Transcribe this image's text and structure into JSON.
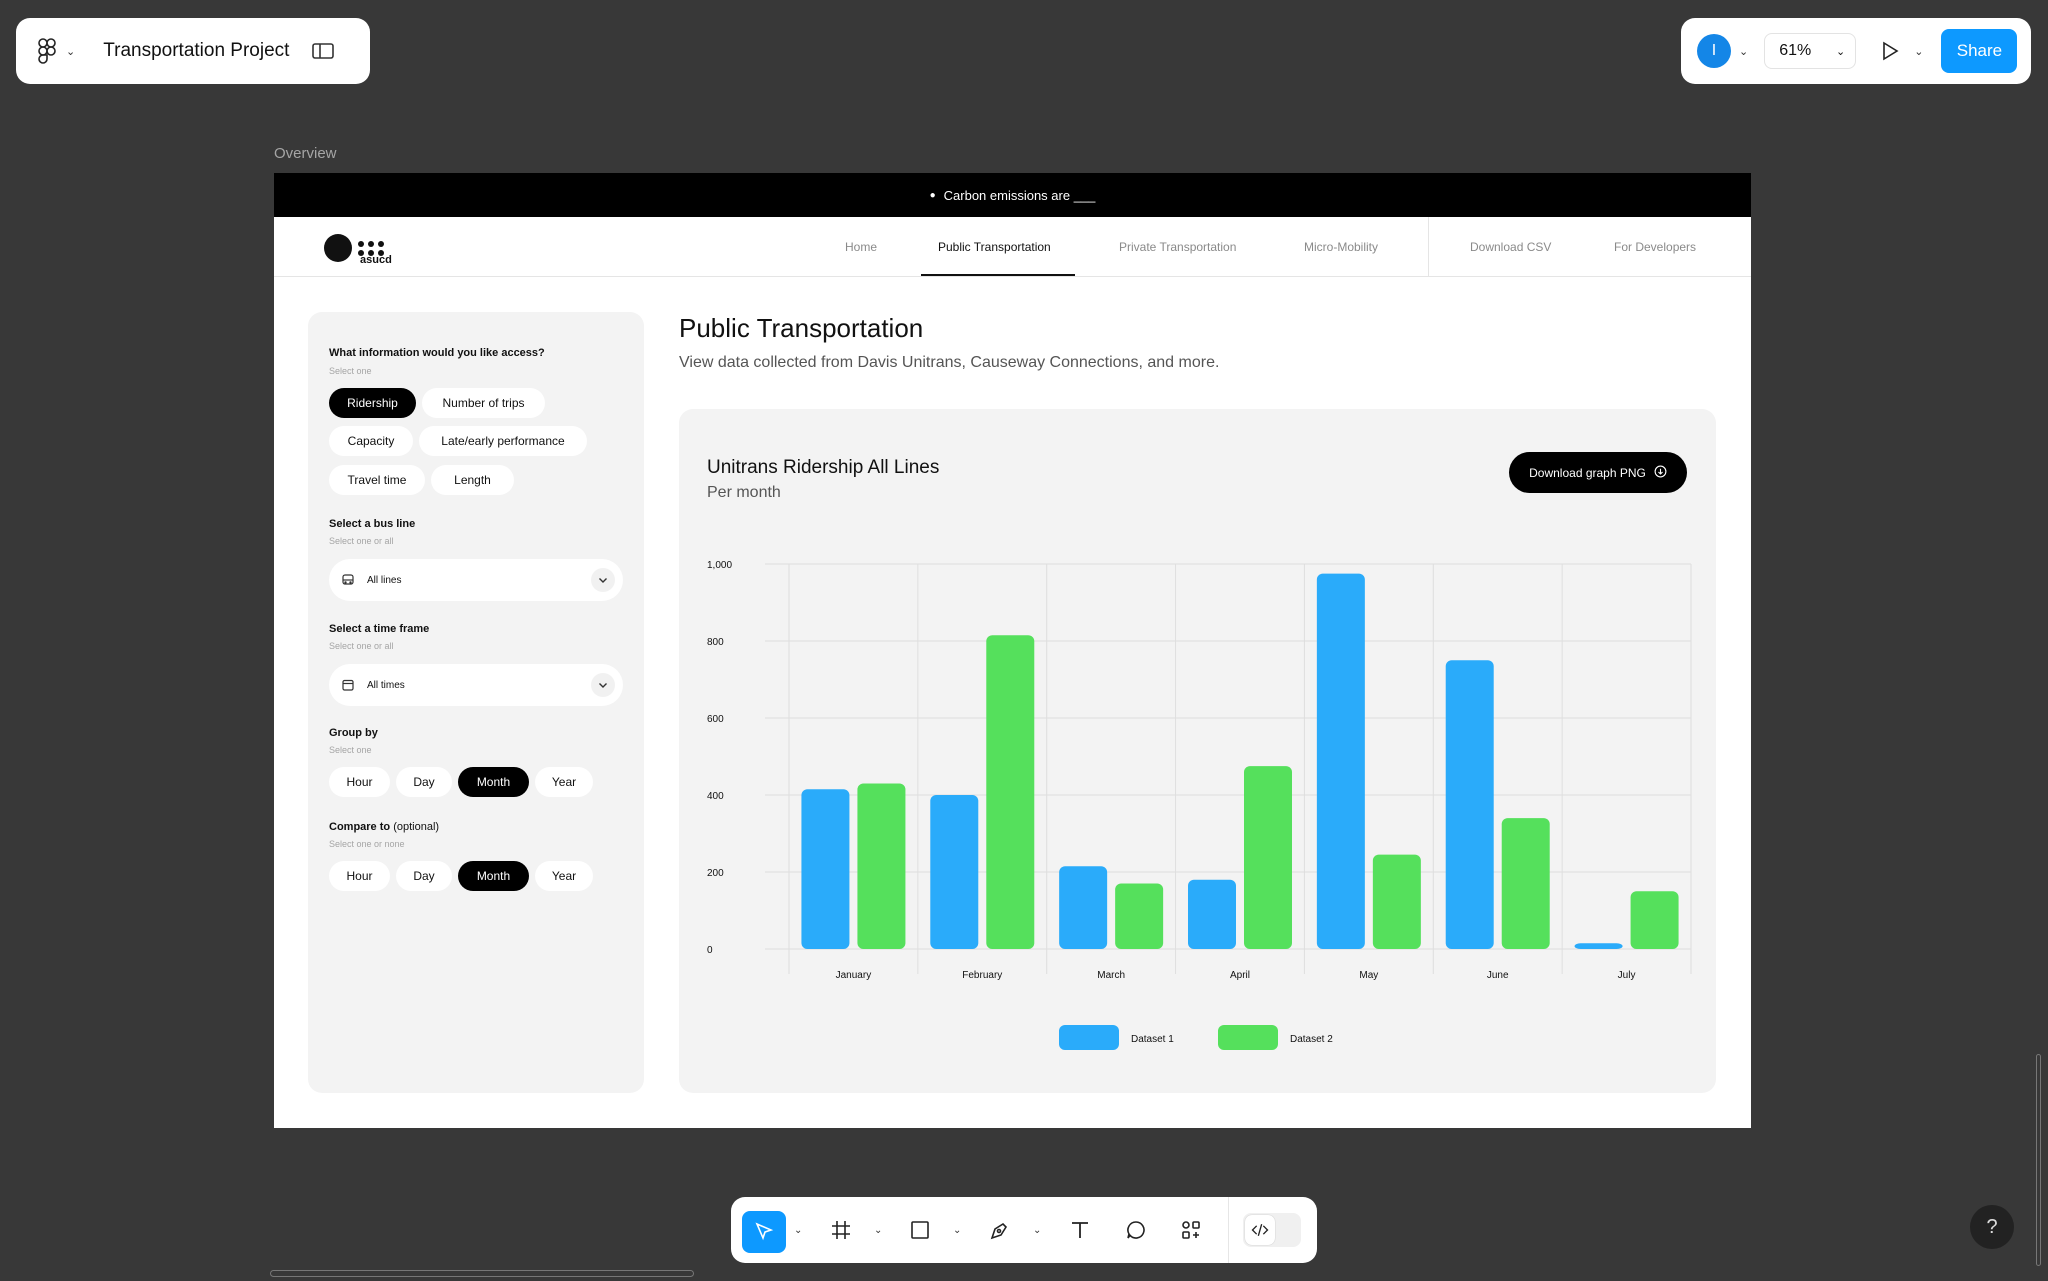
{
  "app": {
    "project_name": "Transportation Project",
    "avatar_initial": "I",
    "zoom": "61%",
    "share_label": "Share",
    "frame_label": "Overview",
    "accent": "#0d99ff"
  },
  "site": {
    "banner": "Carbon emissions are ___",
    "brand": "asucd",
    "nav": [
      "Home",
      "Public Transportation",
      "Private Transportation",
      "Micro-Mobility",
      "Download CSV",
      "For Developers"
    ],
    "active_nav": "Public Transportation"
  },
  "sidebar": {
    "info_question": "What information would you like access?",
    "info_hint": "Select one",
    "info_options": [
      "Ridership",
      "Number of trips",
      "Capacity",
      "Late/early performance",
      "Travel time",
      "Length"
    ],
    "info_selected": "Ridership",
    "bus_question": "Select a bus line",
    "bus_hint": "Select one or all",
    "bus_value": "All lines",
    "time_question": "Select a time frame",
    "time_hint": "Select one or all",
    "time_value": "All times",
    "group_question": "Group by",
    "group_hint": "Select one",
    "group_options": [
      "Hour",
      "Day",
      "Month",
      "Year"
    ],
    "group_selected": "Month",
    "compare_question": "Compare to",
    "compare_optional": "(optional)",
    "compare_hint": "Select one or none",
    "compare_options": [
      "Hour",
      "Day",
      "Month",
      "Year"
    ],
    "compare_selected": "Month"
  },
  "main": {
    "title": "Public Transportation",
    "subtitle": "View data collected from Davis Unitrans, Causeway Connections, and more.",
    "download_label": "Download graph PNG"
  },
  "chart_data": {
    "type": "bar",
    "title": "Unitrans Ridership All Lines",
    "subtitle": "Per month",
    "categories": [
      "January",
      "February",
      "March",
      "April",
      "May",
      "June",
      "July"
    ],
    "series": [
      {
        "name": "Dataset 1",
        "color": "#2aabfa",
        "values": [
          415,
          400,
          215,
          180,
          975,
          750,
          15
        ]
      },
      {
        "name": "Dataset 2",
        "color": "#55e05c",
        "values": [
          430,
          815,
          170,
          475,
          245,
          340,
          150
        ]
      }
    ],
    "ylim": [
      0,
      1000
    ],
    "yticks": [
      0,
      200,
      400,
      600,
      800,
      1000
    ],
    "ytick_labels": [
      "0",
      "200",
      "400",
      "600",
      "800",
      "1,000"
    ],
    "grid": true,
    "legend_position": "bottom"
  }
}
